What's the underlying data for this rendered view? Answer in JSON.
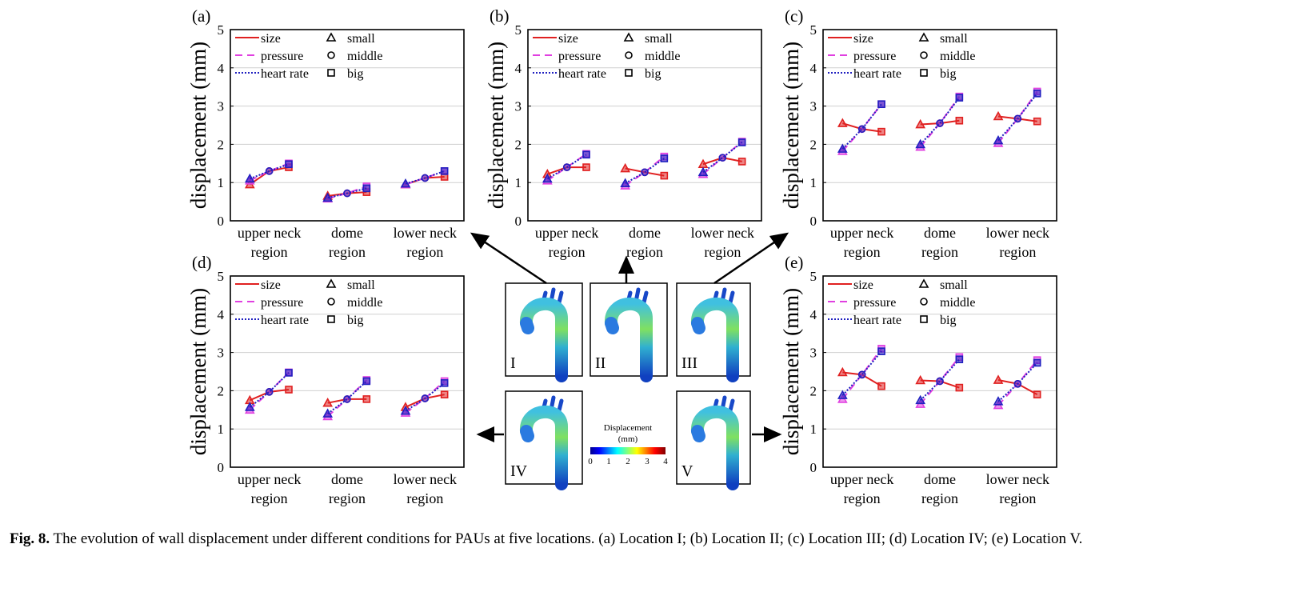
{
  "figure": {
    "caption_label": "Fig. 8.",
    "caption_text": " The evolution of wall displacement under different conditions for PAUs at five locations. (a) Location I; (b) Location II; (c) Location III; (d) Location IV; (e) Location V."
  },
  "legend": {
    "series": [
      "size",
      "pressure",
      "heart rate"
    ],
    "markers": [
      "small",
      "middle",
      "big"
    ]
  },
  "colors": {
    "size": "#e02020",
    "pressure": "#e040e0",
    "heart_rate": "#2020c0",
    "grid": "#cfcfcf"
  },
  "chart_data": [
    {
      "type": "line",
      "panel": "(a)",
      "ylabel": "displacement (mm)",
      "ylim": [
        0,
        5
      ],
      "yticks": [
        0,
        1,
        2,
        3,
        4,
        5
      ],
      "categories": [
        "upper neck region",
        "dome region",
        "lower neck region"
      ],
      "x_labels": [
        [
          "upper neck",
          "region"
        ],
        [
          "dome",
          "region"
        ],
        [
          "lower neck",
          "region"
        ]
      ],
      "levels": [
        "small",
        "middle",
        "big"
      ],
      "series": [
        {
          "name": "size",
          "values": [
            [
              0.95,
              1.3,
              1.4
            ],
            [
              0.65,
              0.72,
              0.75
            ],
            [
              0.95,
              1.12,
              1.15
            ]
          ]
        },
        {
          "name": "pressure",
          "values": [
            [
              1.05,
              1.3,
              1.5
            ],
            [
              0.58,
              0.72,
              0.9
            ],
            [
              0.95,
              1.12,
              1.3
            ]
          ]
        },
        {
          "name": "heart rate",
          "values": [
            [
              1.1,
              1.3,
              1.48
            ],
            [
              0.6,
              0.72,
              0.85
            ],
            [
              0.97,
              1.12,
              1.3
            ]
          ]
        }
      ]
    },
    {
      "type": "line",
      "panel": "(b)",
      "ylabel": "displacement (mm)",
      "ylim": [
        0,
        5
      ],
      "yticks": [
        0,
        1,
        2,
        3,
        4,
        5
      ],
      "categories": [
        "upper neck region",
        "dome region",
        "lower neck region"
      ],
      "x_labels": [
        [
          "upper neck",
          "region"
        ],
        [
          "dome",
          "region"
        ],
        [
          "lower neck",
          "region"
        ]
      ],
      "levels": [
        "small",
        "middle",
        "big"
      ],
      "series": [
        {
          "name": "size",
          "values": [
            [
              1.22,
              1.4,
              1.4
            ],
            [
              1.37,
              1.27,
              1.18
            ],
            [
              1.48,
              1.65,
              1.55
            ]
          ]
        },
        {
          "name": "pressure",
          "values": [
            [
              1.05,
              1.4,
              1.75
            ],
            [
              0.92,
              1.27,
              1.68
            ],
            [
              1.22,
              1.65,
              2.07
            ]
          ]
        },
        {
          "name": "heart rate",
          "values": [
            [
              1.1,
              1.4,
              1.73
            ],
            [
              0.98,
              1.27,
              1.63
            ],
            [
              1.27,
              1.65,
              2.05
            ]
          ]
        }
      ]
    },
    {
      "type": "line",
      "panel": "(c)",
      "ylabel": "displacement (mm)",
      "ylim": [
        0,
        5
      ],
      "yticks": [
        0,
        1,
        2,
        3,
        4,
        5
      ],
      "categories": [
        "upper neck region",
        "dome region",
        "lower neck region"
      ],
      "x_labels": [
        [
          "upper neck",
          "region"
        ],
        [
          "dome",
          "region"
        ],
        [
          "lower neck",
          "region"
        ]
      ],
      "levels": [
        "small",
        "middle",
        "big"
      ],
      "series": [
        {
          "name": "size",
          "values": [
            [
              2.55,
              2.4,
              2.33
            ],
            [
              2.52,
              2.55,
              2.62
            ],
            [
              2.73,
              2.67,
              2.6
            ]
          ]
        },
        {
          "name": "pressure",
          "values": [
            [
              1.82,
              2.4,
              3.05
            ],
            [
              1.93,
              2.55,
              3.25
            ],
            [
              2.03,
              2.67,
              3.38
            ]
          ]
        },
        {
          "name": "heart rate",
          "values": [
            [
              1.88,
              2.4,
              3.05
            ],
            [
              2.0,
              2.55,
              3.22
            ],
            [
              2.1,
              2.67,
              3.33
            ]
          ]
        }
      ]
    },
    {
      "type": "line",
      "panel": "(d)",
      "ylabel": "displacement (mm)",
      "ylim": [
        0,
        5
      ],
      "yticks": [
        0,
        1,
        2,
        3,
        4,
        5
      ],
      "categories": [
        "upper neck region",
        "dome region",
        "lower neck region"
      ],
      "x_labels": [
        [
          "upper neck",
          "region"
        ],
        [
          "dome",
          "region"
        ],
        [
          "lower neck",
          "region"
        ]
      ],
      "levels": [
        "small",
        "middle",
        "big"
      ],
      "series": [
        {
          "name": "size",
          "values": [
            [
              1.75,
              1.97,
              2.03
            ],
            [
              1.68,
              1.78,
              1.78
            ],
            [
              1.57,
              1.8,
              1.9
            ]
          ]
        },
        {
          "name": "pressure",
          "values": [
            [
              1.5,
              1.97,
              2.48
            ],
            [
              1.33,
              1.78,
              2.28
            ],
            [
              1.42,
              1.8,
              2.25
            ]
          ]
        },
        {
          "name": "heart rate",
          "values": [
            [
              1.57,
              1.97,
              2.47
            ],
            [
              1.4,
              1.78,
              2.25
            ],
            [
              1.47,
              1.8,
              2.2
            ]
          ]
        }
      ]
    },
    {
      "type": "line",
      "panel": "(e)",
      "ylabel": "displacement (mm)",
      "ylim": [
        0,
        5
      ],
      "yticks": [
        0,
        1,
        2,
        3,
        4,
        5
      ],
      "categories": [
        "upper neck region",
        "dome region",
        "lower neck region"
      ],
      "x_labels": [
        [
          "upper neck",
          "region"
        ],
        [
          "dome",
          "region"
        ],
        [
          "lower neck",
          "region"
        ]
      ],
      "levels": [
        "small",
        "middle",
        "big"
      ],
      "series": [
        {
          "name": "size",
          "values": [
            [
              2.48,
              2.42,
              2.12
            ],
            [
              2.27,
              2.25,
              2.08
            ],
            [
              2.28,
              2.18,
              1.9
            ]
          ]
        },
        {
          "name": "pressure",
          "values": [
            [
              1.78,
              2.42,
              3.1
            ],
            [
              1.65,
              2.25,
              2.88
            ],
            [
              1.62,
              2.18,
              2.8
            ]
          ]
        },
        {
          "name": "heart rate",
          "values": [
            [
              1.88,
              2.42,
              3.03
            ],
            [
              1.75,
              2.25,
              2.82
            ],
            [
              1.72,
              2.18,
              2.73
            ]
          ]
        }
      ]
    }
  ],
  "locations": [
    "I",
    "II",
    "III",
    "IV",
    "V"
  ],
  "colorbar": {
    "title": "Displacement",
    "unit": "(mm)",
    "ticks": [
      "0",
      "1",
      "2",
      "3",
      "4"
    ]
  }
}
